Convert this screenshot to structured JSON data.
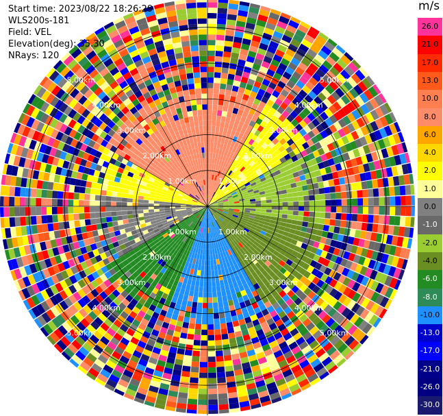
{
  "header": {
    "start_time": "Start time: 2023/08/22 18:26:29",
    "instrument": "WLS200s-181",
    "field": "Field: VEL",
    "elevation": "Elevation(deg): 35.30",
    "nrays": "NRays: 120"
  },
  "colorbar": {
    "unit": "m/s",
    "levels": [
      {
        "label": "26.0",
        "color": "#ff3399",
        "text_color": "#000000"
      },
      {
        "label": "21.0",
        "color": "#ff0000",
        "text_color": "#000000"
      },
      {
        "label": "17.0",
        "color": "#ff2a00",
        "text_color": "#000000"
      },
      {
        "label": "13.0",
        "color": "#ff5a1a",
        "text_color": "#000000"
      },
      {
        "label": "10.0",
        "color": "#ff7f50",
        "text_color": "#000000"
      },
      {
        "label": "8.0",
        "color": "#ff8c69",
        "text_color": "#000000"
      },
      {
        "label": "6.0",
        "color": "#ffa500",
        "text_color": "#000000"
      },
      {
        "label": "4.0",
        "color": "#ffd700",
        "text_color": "#000000"
      },
      {
        "label": "2.0",
        "color": "#ffff00",
        "text_color": "#000000"
      },
      {
        "label": "1.0",
        "color": "#ffff99",
        "text_color": "#000000"
      },
      {
        "label": "0.0",
        "color": "#808080",
        "text_color": "#000000"
      },
      {
        "label": "-1.0",
        "color": "#696969",
        "text_color": "#ffffff"
      },
      {
        "label": "-2.0",
        "color": "#9acd32",
        "text_color": "#000000"
      },
      {
        "label": "-4.0",
        "color": "#6b8e23",
        "text_color": "#000000"
      },
      {
        "label": "-6.0",
        "color": "#228b22",
        "text_color": "#ffffff"
      },
      {
        "label": "-8.0",
        "color": "#2e8b57",
        "text_color": "#ffffff"
      },
      {
        "label": "-10.0",
        "color": "#1e90ff",
        "text_color": "#000000"
      },
      {
        "label": "-13.0",
        "color": "#0000cd",
        "text_color": "#ffffff"
      },
      {
        "label": "-17.0",
        "color": "#0000ff",
        "text_color": "#ffffff"
      },
      {
        "label": "-21.0",
        "color": "#00008b",
        "text_color": "#ffffff"
      },
      {
        "label": "-26.0",
        "color": "#000080",
        "text_color": "#ffffff"
      },
      {
        "label": "-30.0",
        "color": "#191970",
        "text_color": "#ffffff"
      }
    ]
  },
  "chart_data": {
    "type": "heatmap",
    "subtype": "ppi-polar",
    "field": "VEL",
    "units": "m/s",
    "nrays": 120,
    "range_rings_km": [
      1.0,
      2.0,
      3.0,
      4.0,
      5.0
    ],
    "ring_labels": [
      "1.00km",
      "2.00km",
      "3.00km",
      "4.00km",
      "5.00km"
    ],
    "max_range_km": 5.8,
    "velocity_by_sector_inner": [
      {
        "azimuth_from_deg": 300,
        "azimuth_to_deg": 30,
        "velocity_ms": 8.0
      },
      {
        "azimuth_from_deg": 30,
        "azimuth_to_deg": 60,
        "velocity_ms": 2.0
      },
      {
        "azimuth_from_deg": 60,
        "azimuth_to_deg": 100,
        "velocity_ms": -2.0
      },
      {
        "azimuth_from_deg": 100,
        "azimuth_to_deg": 150,
        "velocity_ms": -4.0
      },
      {
        "azimuth_from_deg": 150,
        "azimuth_to_deg": 200,
        "velocity_ms": -10.0
      },
      {
        "azimuth_from_deg": 200,
        "azimuth_to_deg": 240,
        "velocity_ms": -6.0
      },
      {
        "azimuth_from_deg": 240,
        "azimuth_to_deg": 275,
        "velocity_ms": 0.0
      },
      {
        "azimuth_from_deg": 275,
        "azimuth_to_deg": 300,
        "velocity_ms": 2.0
      }
    ],
    "clean_data_range_km": 3.2,
    "beyond_clean_range": "noise (random velocity colors)",
    "grid": true
  }
}
